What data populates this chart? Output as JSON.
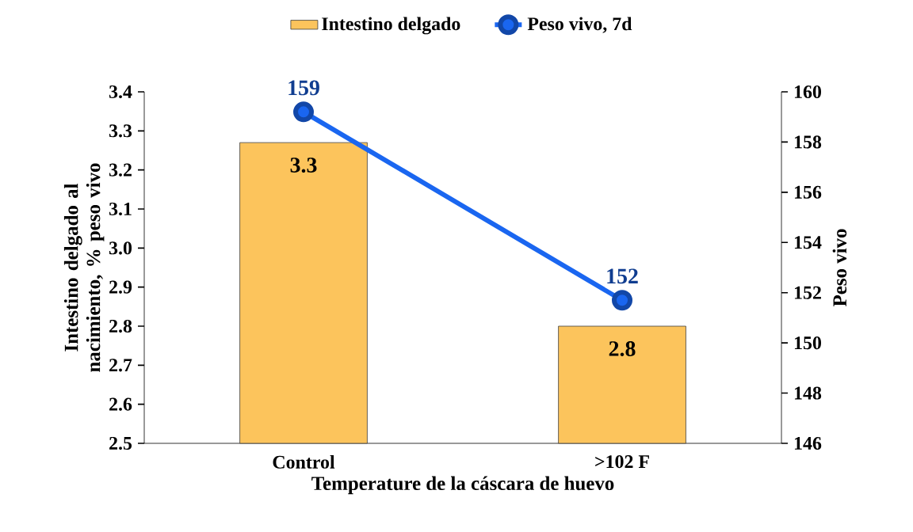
{
  "chart_data": {
    "type": "bar",
    "xlabel": "Temperature de la cáscara de huevo",
    "ylabel": "Intestino delgado al nacimiento, % peso vivo",
    "y2label": "Peso vivo",
    "categories": [
      "Control",
      ">102 F"
    ],
    "series": [
      {
        "name": "Intestino delgado",
        "color": "#fcc45c",
        "values": [
          3.27,
          2.8
        ],
        "value_labels": [
          "3.3",
          "2.8"
        ]
      },
      {
        "name": "Peso vivo, 7d",
        "type": "line",
        "axis": "y2",
        "color": "#1a66f0",
        "values": [
          159.2,
          151.7
        ],
        "value_labels": [
          "159",
          "152"
        ]
      }
    ],
    "ylim": [
      2.5,
      3.4
    ],
    "yticks": [
      2.5,
      2.6,
      2.7,
      2.8,
      2.9,
      {
        "value": 3,
        "label": "3.0"
      },
      3.1,
      3.2,
      3.3,
      3.4
    ],
    "y2lim": [
      146,
      160
    ],
    "y2ticks": [
      146,
      148,
      150,
      152,
      154,
      156,
      158,
      160
    ],
    "marker": "circle",
    "legend": "top"
  }
}
